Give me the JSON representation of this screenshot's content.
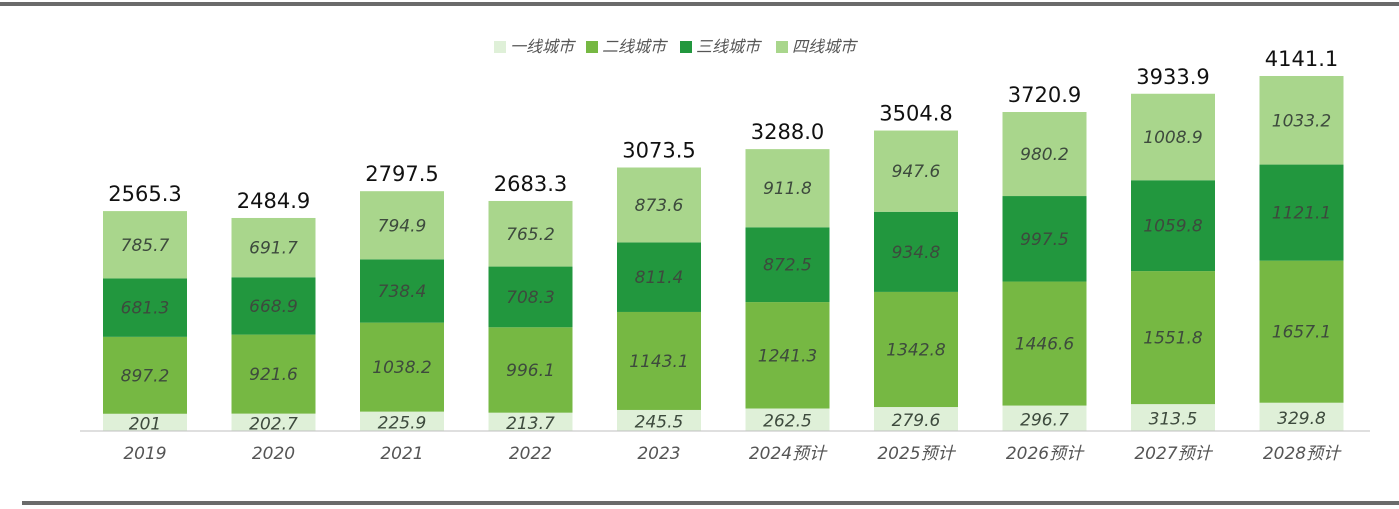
{
  "chart_data": {
    "type": "bar",
    "stacked": true,
    "categories": [
      "2019",
      "2020",
      "2021",
      "2022",
      "2023",
      "2024预计",
      "2025预计",
      "2026预计",
      "2027预计",
      "2028预计"
    ],
    "series": [
      {
        "name": "一线城市",
        "color": "#dff0d8",
        "values": [
          201,
          202.7,
          225.9,
          213.7,
          245.5,
          262.5,
          279.6,
          296.7,
          313.5,
          329.8
        ]
      },
      {
        "name": "二线城市",
        "color": "#76b843",
        "values": [
          897.2,
          921.6,
          1038.2,
          996.1,
          1143.1,
          1241.3,
          1342.8,
          1446.6,
          1551.8,
          1657.1
        ]
      },
      {
        "name": "三线城市",
        "color": "#22973e",
        "values": [
          681.3,
          668.9,
          738.4,
          708.3,
          811.4,
          872.5,
          934.8,
          997.5,
          1059.8,
          1121.1
        ]
      },
      {
        "name": "四线城市",
        "color": "#a9d68c",
        "values": [
          785.7,
          691.7,
          794.9,
          765.2,
          873.6,
          911.8,
          947.6,
          980.2,
          1008.9,
          1033.2
        ]
      }
    ],
    "series_labels": [
      [
        "201",
        "202.7",
        "225.9",
        "213.7",
        "245.5",
        "262.5",
        "279.6",
        "296.7",
        "313.5",
        "329.8"
      ],
      [
        "897.2",
        "921.6",
        "1038.2",
        "996.1",
        "1143.1",
        "1241.3",
        "1342.8",
        "1446.6",
        "1551.8",
        "1657.1"
      ],
      [
        "681.3",
        "668.9",
        "738.4",
        "708.3",
        "811.4",
        "872.5",
        "934.8",
        "997.5",
        "1059.8",
        "1121.1"
      ],
      [
        "785.7",
        "691.7",
        "794.9",
        "765.2",
        "873.6",
        "911.8",
        "947.6",
        "980.2",
        "1008.9",
        "1033.2"
      ]
    ],
    "totals": [
      "2565.3",
      "2484.9",
      "2797.5",
      "2683.3",
      "3073.5",
      "3288.0",
      "3504.8",
      "3720.9",
      "3933.9",
      "4141.1"
    ],
    "legend_position": "top-center",
    "grid": false,
    "ylim": [
      0,
      4500
    ]
  }
}
